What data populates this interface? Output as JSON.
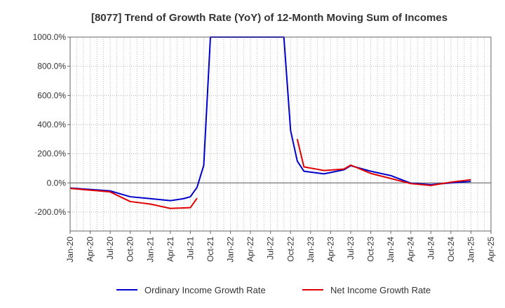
{
  "chart_data": {
    "type": "line",
    "title": "[8077]  Trend of Growth Rate (YoY) of 12-Month Moving Sum of Incomes",
    "xlabel": "",
    "ylabel": "",
    "x_ticks": [
      "Jan-20",
      "Apr-20",
      "Jul-20",
      "Oct-20",
      "Jan-21",
      "Apr-21",
      "Jul-21",
      "Oct-21",
      "Jan-22",
      "Apr-22",
      "Jul-22",
      "Oct-22",
      "Jan-23",
      "Apr-23",
      "Jul-23",
      "Oct-23",
      "Jan-24",
      "Apr-24",
      "Jul-24",
      "Oct-24",
      "Jan-25",
      "Apr-25"
    ],
    "y_ticks": [
      "1000.0%",
      "800.0%",
      "600.0%",
      "400.0%",
      "200.0%",
      "0.0%",
      "-200.0%"
    ],
    "ylim": [
      -330,
      1000
    ],
    "grid": true,
    "legend_position": "bottom",
    "series": [
      {
        "name": "Ordinary Income Growth Rate",
        "color": "#0000cc",
        "points": [
          [
            "2020-01",
            -35
          ],
          [
            "2020-04",
            -45
          ],
          [
            "2020-07",
            -55
          ],
          [
            "2020-10",
            -95
          ],
          [
            "2021-01",
            -108
          ],
          [
            "2021-04",
            -122
          ],
          [
            "2021-06",
            -108
          ],
          [
            "2021-07",
            -95
          ],
          [
            "2021-08",
            -30
          ],
          [
            "2021-09",
            120
          ],
          [
            "2021-10",
            1000
          ],
          [
            "2022-09",
            1000
          ],
          [
            "2022-10",
            360
          ],
          [
            "2022-11",
            150
          ],
          [
            "2022-12",
            80
          ],
          [
            "2023-03",
            62
          ],
          [
            "2023-06",
            90
          ],
          [
            "2023-07",
            118
          ],
          [
            "2023-10",
            80
          ],
          [
            "2024-01",
            50
          ],
          [
            "2024-04",
            -2
          ],
          [
            "2024-07",
            -12
          ],
          [
            "2024-10",
            0
          ],
          [
            "2025-01",
            10
          ]
        ]
      },
      {
        "name": "Net Income Growth Rate",
        "color": "#e00000",
        "segments": [
          [
            [
              "2020-01",
              -38
            ],
            [
              "2020-04",
              -50
            ],
            [
              "2020-07",
              -62
            ],
            [
              "2020-10",
              -128
            ],
            [
              "2021-01",
              -145
            ],
            [
              "2021-04",
              -175
            ],
            [
              "2021-07",
              -170
            ],
            [
              "2021-08",
              -105
            ]
          ],
          [
            [
              "2022-11",
              300
            ],
            [
              "2022-12",
              110
            ],
            [
              "2023-03",
              85
            ],
            [
              "2023-06",
              95
            ],
            [
              "2023-07",
              122
            ],
            [
              "2023-10",
              65
            ],
            [
              "2024-01",
              30
            ],
            [
              "2024-04",
              -5
            ],
            [
              "2024-07",
              -18
            ],
            [
              "2024-10",
              5
            ],
            [
              "2025-01",
              22
            ]
          ]
        ]
      }
    ]
  }
}
